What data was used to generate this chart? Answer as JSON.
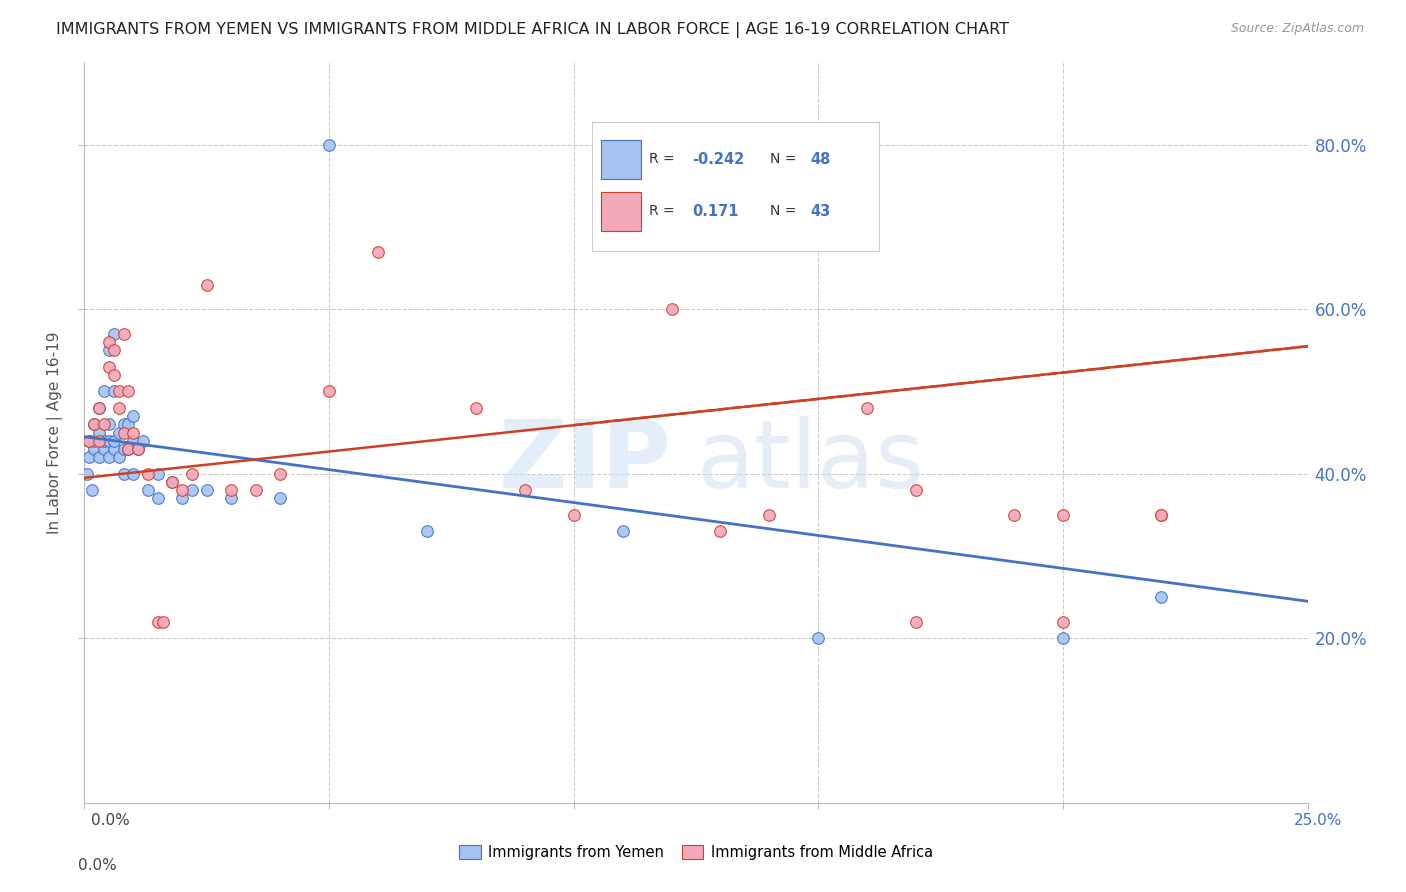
{
  "title": "IMMIGRANTS FROM YEMEN VS IMMIGRANTS FROM MIDDLE AFRICA IN LABOR FORCE | AGE 16-19 CORRELATION CHART",
  "source": "Source: ZipAtlas.com",
  "ylabel": "In Labor Force | Age 16-19",
  "blue_color": "#a4c2f4",
  "pink_color": "#f4a7b9",
  "blue_line_color": "#4472c4",
  "pink_line_color": "#cc4125",
  "background_color": "#ffffff",
  "grid_color": "#cccccc",
  "xlim": [
    0.0,
    0.25
  ],
  "ylim": [
    0.0,
    0.9
  ],
  "xticks": [
    0.0,
    0.05,
    0.1,
    0.15,
    0.2,
    0.25
  ],
  "yticks": [
    0.2,
    0.4,
    0.6,
    0.8
  ],
  "legend_r1": "-0.242",
  "legend_n1": "48",
  "legend_r2": "0.171",
  "legend_n2": "43",
  "yemen_x": [
    0.0005,
    0.001,
    0.001,
    0.0015,
    0.002,
    0.002,
    0.002,
    0.003,
    0.003,
    0.003,
    0.004,
    0.004,
    0.004,
    0.005,
    0.005,
    0.005,
    0.005,
    0.006,
    0.006,
    0.006,
    0.006,
    0.007,
    0.007,
    0.008,
    0.008,
    0.008,
    0.009,
    0.009,
    0.01,
    0.01,
    0.01,
    0.011,
    0.012,
    0.013,
    0.015,
    0.015,
    0.018,
    0.02,
    0.022,
    0.025,
    0.03,
    0.04,
    0.05,
    0.07,
    0.11,
    0.15,
    0.2,
    0.22
  ],
  "yemen_y": [
    0.4,
    0.42,
    0.44,
    0.38,
    0.43,
    0.44,
    0.46,
    0.42,
    0.45,
    0.48,
    0.43,
    0.44,
    0.5,
    0.42,
    0.44,
    0.46,
    0.55,
    0.43,
    0.44,
    0.5,
    0.57,
    0.42,
    0.45,
    0.4,
    0.43,
    0.46,
    0.43,
    0.46,
    0.4,
    0.44,
    0.47,
    0.43,
    0.44,
    0.38,
    0.37,
    0.4,
    0.39,
    0.37,
    0.38,
    0.38,
    0.37,
    0.37,
    0.8,
    0.33,
    0.33,
    0.2,
    0.2,
    0.25
  ],
  "midafrica_x": [
    0.001,
    0.002,
    0.003,
    0.003,
    0.004,
    0.005,
    0.005,
    0.006,
    0.006,
    0.007,
    0.007,
    0.008,
    0.008,
    0.009,
    0.009,
    0.01,
    0.011,
    0.013,
    0.015,
    0.016,
    0.018,
    0.02,
    0.022,
    0.025,
    0.03,
    0.035,
    0.04,
    0.05,
    0.06,
    0.08,
    0.09,
    0.1,
    0.12,
    0.14,
    0.16,
    0.17,
    0.19,
    0.2,
    0.22,
    0.13,
    0.17,
    0.2,
    0.22
  ],
  "midafrica_y": [
    0.44,
    0.46,
    0.44,
    0.48,
    0.46,
    0.53,
    0.56,
    0.52,
    0.55,
    0.48,
    0.5,
    0.45,
    0.57,
    0.43,
    0.5,
    0.45,
    0.43,
    0.4,
    0.22,
    0.22,
    0.39,
    0.38,
    0.4,
    0.63,
    0.38,
    0.38,
    0.4,
    0.5,
    0.67,
    0.48,
    0.38,
    0.35,
    0.6,
    0.35,
    0.48,
    0.38,
    0.35,
    0.35,
    0.35,
    0.33,
    0.22,
    0.22,
    0.35
  ]
}
